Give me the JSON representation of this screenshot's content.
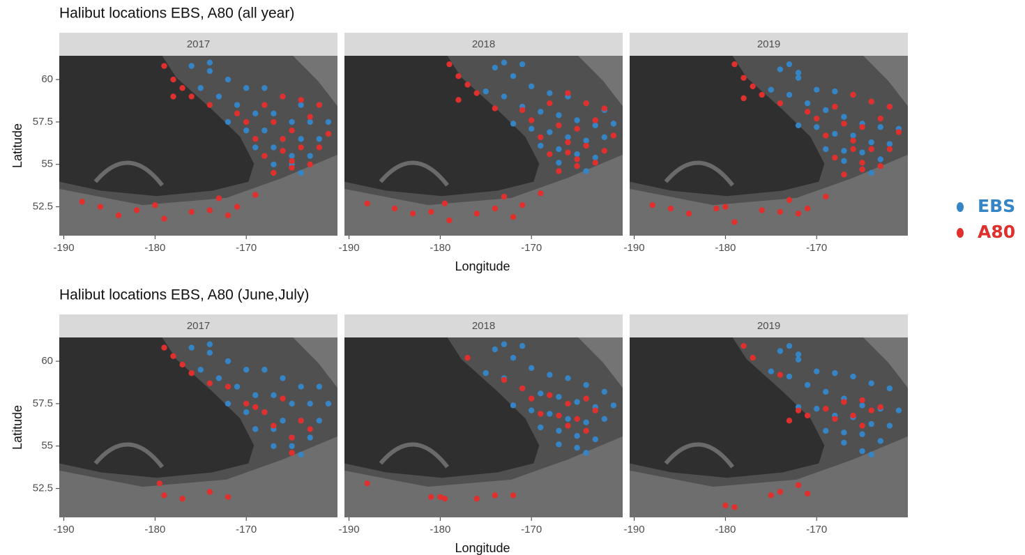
{
  "chart_data": [
    {
      "type": "scatter",
      "title": "Halibut locations EBS, A80 (all year)",
      "xlabel": "Longitude",
      "ylabel": "Latitude",
      "xlim": [
        -190.5,
        -160
      ],
      "ylim": [
        50.8,
        61.4
      ],
      "xticks": [
        -190,
        -180,
        -170
      ],
      "yticks": [
        52.5,
        55.0,
        57.5,
        60.0
      ],
      "facets": [
        {
          "label": "2017",
          "series": [
            {
              "name": "EBS",
              "color": "#3585c6",
              "x": [
                -174,
                -172,
                -170,
                -168,
                -166,
                -164,
                -162,
                -175,
                -173,
                -171,
                -169,
                -167,
                -165,
                -163,
                -161,
                -172,
                -170,
                -168,
                -166,
                -164,
                -162,
                -169,
                -167,
                -165,
                -163,
                -167,
                -165,
                -164,
                -176,
                -174
              ],
              "y": [
                60.5,
                60,
                59.5,
                59.5,
                59,
                58.5,
                58.5,
                59.5,
                59,
                58.5,
                58,
                58,
                57.5,
                57.5,
                57.5,
                57.5,
                57,
                57,
                56.5,
                56.5,
                56.5,
                56,
                56,
                55.5,
                55.5,
                55,
                55,
                54.5,
                60.8,
                61
              ]
            },
            {
              "name": "A80",
              "color": "#e0302e",
              "x": [
                -179,
                -178,
                -177,
                -176,
                -178,
                -174,
                -171,
                -168,
                -166,
                -164,
                -162,
                -170,
                -167,
                -165,
                -163,
                -169,
                -166,
                -164,
                -162,
                -168,
                -165,
                -163,
                -167,
                -165,
                -188,
                -186,
                -184,
                -182,
                -180,
                -179,
                -176,
                -174,
                -172,
                -171,
                -169,
                -173,
                -161,
                -166
              ],
              "y": [
                60.8,
                60,
                59.5,
                59,
                59,
                58.5,
                58,
                58.5,
                59,
                58.8,
                58.5,
                57.5,
                57.5,
                57,
                57.8,
                56.5,
                56.5,
                56,
                56,
                55.5,
                55.2,
                55,
                54.5,
                54.8,
                52.8,
                52.5,
                52,
                52.3,
                52.6,
                51.8,
                52.2,
                52.3,
                52,
                52.5,
                53.2,
                53,
                56.8,
                55.8
              ]
            }
          ]
        },
        {
          "label": "2018",
          "series": [
            {
              "name": "EBS",
              "color": "#3585c6",
              "x": [
                -174,
                -172,
                -170,
                -168,
                -166,
                -164,
                -162,
                -175,
                -173,
                -171,
                -169,
                -167,
                -165,
                -163,
                -161,
                -172,
                -170,
                -168,
                -166,
                -164,
                -162,
                -169,
                -167,
                -165,
                -163,
                -167,
                -165,
                -164,
                -173,
                -171
              ],
              "y": [
                60.7,
                60.2,
                59.6,
                59.2,
                59,
                58.6,
                58.2,
                59.3,
                59,
                58.4,
                58.1,
                57.9,
                57.6,
                57.3,
                57.4,
                57.4,
                57.1,
                56.9,
                56.6,
                56.4,
                56.6,
                56.1,
                55.9,
                55.6,
                55.4,
                55.1,
                54.9,
                54.6,
                61,
                60.9
              ]
            },
            {
              "name": "A80",
              "color": "#e0302e",
              "x": [
                -179,
                -178,
                -177,
                -176,
                -178,
                -174,
                -171,
                -168,
                -166,
                -164,
                -162,
                -170,
                -167,
                -165,
                -163,
                -169,
                -166,
                -164,
                -162,
                -168,
                -165,
                -163,
                -167,
                -165,
                -188,
                -185,
                -183,
                -181,
                -179.5,
                -179,
                -176,
                -174,
                -172,
                -171,
                -169,
                -173,
                -161,
                -166
              ],
              "y": [
                60.9,
                60.2,
                59.7,
                59.2,
                58.8,
                58.3,
                58.2,
                58.6,
                59.2,
                58.6,
                58.3,
                57.6,
                57.3,
                57.1,
                57.6,
                56.6,
                56.3,
                56.1,
                55.8,
                55.6,
                55.3,
                55.1,
                54.6,
                54.9,
                52.7,
                52.4,
                52.1,
                52.2,
                52.7,
                51.7,
                52.1,
                52.4,
                51.9,
                52.6,
                53.3,
                53.1,
                56.7,
                55.7
              ]
            }
          ]
        },
        {
          "label": "2019",
          "series": [
            {
              "name": "EBS",
              "color": "#3585c6",
              "x": [
                -174,
                -172,
                -170,
                -168,
                -166,
                -164,
                -162,
                -175,
                -173,
                -171,
                -169,
                -167,
                -165,
                -163,
                -161,
                -172,
                -170,
                -168,
                -166,
                -164,
                -162,
                -169,
                -167,
                -165,
                -163,
                -167,
                -165,
                -164,
                -173,
                -172
              ],
              "y": [
                60.6,
                60.1,
                59.4,
                59.3,
                59.1,
                58.7,
                58.4,
                59.4,
                59.1,
                58.6,
                58.2,
                57.8,
                57.4,
                57.2,
                57.1,
                57.3,
                57.2,
                56.8,
                56.7,
                56.3,
                56.2,
                55.9,
                55.8,
                55.7,
                55.3,
                55.2,
                54.7,
                54.5,
                60.9,
                60.4
              ]
            },
            {
              "name": "A80",
              "color": "#e0302e",
              "x": [
                -179,
                -178,
                -177,
                -176,
                -178,
                -174,
                -171,
                -168,
                -166,
                -164,
                -162,
                -170,
                -167,
                -165,
                -163,
                -169,
                -166,
                -164,
                -162,
                -168,
                -165,
                -163,
                -167,
                -165,
                -188,
                -186,
                -184,
                -181,
                -180,
                -179,
                -176,
                -174,
                -172,
                -171,
                -169,
                -173,
                -161,
                -166
              ],
              "y": [
                60.9,
                60.1,
                59.6,
                59.1,
                58.9,
                58.6,
                58.1,
                58.4,
                59.1,
                58.7,
                58.4,
                57.7,
                57.4,
                57.2,
                57.7,
                56.7,
                56.4,
                55.9,
                55.9,
                55.4,
                55.1,
                54.9,
                54.4,
                54.7,
                52.6,
                52.4,
                52.1,
                52.4,
                52.5,
                51.6,
                52.3,
                52.2,
                52.1,
                52.4,
                53.1,
                52.9,
                56.9,
                55.9
              ]
            }
          ]
        }
      ]
    },
    {
      "type": "scatter",
      "title": "Halibut locations EBS, A80 (June,July)",
      "xlabel": "Longitude",
      "ylabel": "Latitude",
      "xlim": [
        -190.5,
        -160
      ],
      "ylim": [
        50.8,
        61.4
      ],
      "xticks": [
        -190,
        -180,
        -170
      ],
      "yticks": [
        52.5,
        55.0,
        57.5,
        60.0
      ],
      "facets": [
        {
          "label": "2017",
          "series": [
            {
              "name": "EBS",
              "color": "#3585c6",
              "x": [
                -174,
                -172,
                -170,
                -168,
                -166,
                -164,
                -162,
                -175,
                -173,
                -171,
                -169,
                -167,
                -165,
                -163,
                -161,
                -172,
                -170,
                -168,
                -166,
                -164,
                -162,
                -169,
                -167,
                -165,
                -163,
                -167,
                -165,
                -164,
                -176,
                -174
              ],
              "y": [
                60.5,
                60,
                59.5,
                59.5,
                59,
                58.5,
                58.5,
                59.5,
                59,
                58.5,
                58,
                58,
                57.5,
                57.5,
                57.5,
                57.5,
                57,
                57,
                56.5,
                56.5,
                56.5,
                56,
                56,
                55.5,
                55.5,
                55,
                55,
                54.5,
                60.8,
                61
              ]
            },
            {
              "name": "A80",
              "color": "#e0302e",
              "x": [
                -179,
                -178,
                -177,
                -176,
                -174,
                -172,
                -170,
                -168,
                -166,
                -164,
                -167,
                -165,
                -163,
                -169,
                -165,
                -179.5,
                -179,
                -177,
                -174,
                -172
              ],
              "y": [
                60.8,
                60.3,
                59.8,
                59.3,
                58.7,
                58.5,
                57.5,
                57,
                57.8,
                56.5,
                56.2,
                55.5,
                56,
                57.3,
                54.6,
                52.8,
                52.1,
                51.9,
                52.3,
                52
              ]
            }
          ]
        },
        {
          "label": "2018",
          "series": [
            {
              "name": "EBS",
              "color": "#3585c6",
              "x": [
                -174,
                -172,
                -170,
                -168,
                -166,
                -164,
                -162,
                -175,
                -173,
                -171,
                -169,
                -167,
                -165,
                -163,
                -161,
                -172,
                -170,
                -168,
                -166,
                -164,
                -162,
                -169,
                -167,
                -165,
                -163,
                -167,
                -165,
                -164,
                -173,
                -171
              ],
              "y": [
                60.7,
                60.2,
                59.6,
                59.2,
                59,
                58.6,
                58.2,
                59.3,
                59,
                58.4,
                58.1,
                57.9,
                57.6,
                57.3,
                57.4,
                57.4,
                57.1,
                56.9,
                56.6,
                56.4,
                56.6,
                56.1,
                55.9,
                55.6,
                55.4,
                55.1,
                54.9,
                54.6,
                61,
                60.9
              ]
            },
            {
              "name": "A80",
              "color": "#e0302e",
              "x": [
                -177,
                -173,
                -171,
                -170,
                -168,
                -166,
                -164,
                -163,
                -167,
                -165,
                -169,
                -166,
                -164,
                -188,
                -181,
                -180,
                -179.5,
                -176,
                -174,
                -172
              ],
              "y": [
                60.2,
                58.9,
                58.4,
                57.8,
                58,
                57.5,
                57.8,
                57.1,
                56.8,
                56.6,
                56.9,
                56.2,
                55.9,
                52.8,
                52,
                52,
                51.9,
                51.9,
                52.1,
                52.1
              ]
            }
          ]
        },
        {
          "label": "2019",
          "series": [
            {
              "name": "EBS",
              "color": "#3585c6",
              "x": [
                -174,
                -172,
                -170,
                -168,
                -166,
                -164,
                -162,
                -175,
                -173,
                -171,
                -169,
                -167,
                -165,
                -163,
                -161,
                -172,
                -170,
                -168,
                -166,
                -164,
                -162,
                -169,
                -167,
                -165,
                -163,
                -167,
                -165,
                -164,
                -173,
                -172
              ],
              "y": [
                60.6,
                60.1,
                59.4,
                59.3,
                59.1,
                58.7,
                58.4,
                59.4,
                59.1,
                58.6,
                58.2,
                57.8,
                57.4,
                57.2,
                57.1,
                57.3,
                57.2,
                56.8,
                56.7,
                56.3,
                56.2,
                55.9,
                55.8,
                55.7,
                55.3,
                55.2,
                54.7,
                54.5,
                60.9,
                60.4
              ]
            },
            {
              "name": "A80",
              "color": "#e0302e",
              "x": [
                -178,
                -177,
                -174,
                -172,
                -171,
                -169,
                -167,
                -165,
                -163,
                -166,
                -164,
                -168,
                -165,
                -173,
                -180,
                -179,
                -175,
                -174,
                -172,
                -171
              ],
              "y": [
                60.9,
                60.2,
                59.2,
                57.1,
                56.8,
                57.2,
                57.6,
                57.7,
                57.3,
                56.8,
                57.1,
                56.6,
                56.2,
                56.5,
                51.5,
                51.4,
                52.1,
                52.3,
                52.7,
                52.2
              ]
            }
          ]
        }
      ]
    }
  ]
}
